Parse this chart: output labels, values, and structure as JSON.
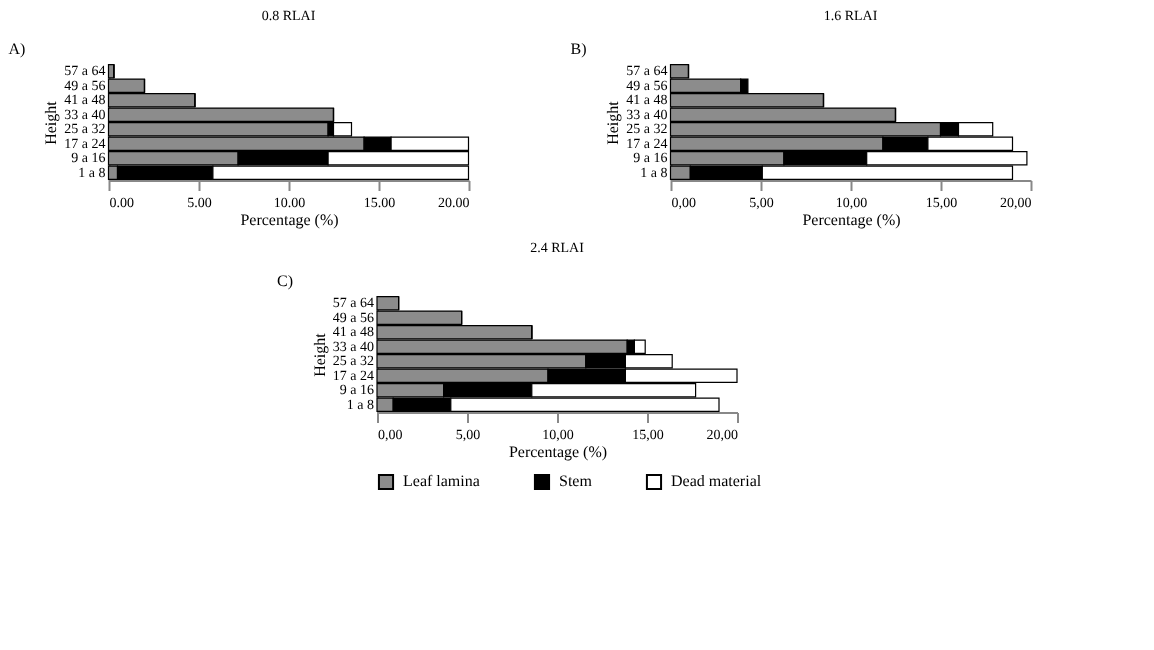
{
  "chart_data": [
    {
      "type": "bar",
      "title": "0.8 RLAI",
      "annotations": [
        "A)"
      ],
      "orientation": "horizontal",
      "stacked": true,
      "ylabel": "Height",
      "xlabel": "Percentage (%)",
      "legend": false,
      "categories": [
        "57 a 64",
        "49 a 56",
        "41 a 48",
        "33 a 40",
        "25 a 32",
        "17 a 24",
        "9 a 16",
        "1 a 8"
      ],
      "xlim": [
        0,
        20
      ],
      "xticks": [
        {
          "value": 0,
          "label": "0.00"
        },
        {
          "value": 5,
          "label": "5.00"
        },
        {
          "value": 10,
          "label": "10.00"
        },
        {
          "value": 15,
          "label": "15.00"
        },
        {
          "value": 20,
          "label": "20.00"
        }
      ],
      "series": [
        {
          "color": "#8c8c8c",
          "values": [
            0.3,
            2.0,
            4.8,
            12.5,
            12.2,
            14.2,
            7.2,
            0.5
          ]
        },
        {
          "color": "#000000",
          "values": [
            0,
            0,
            0,
            0,
            0.3,
            1.5,
            5.0,
            5.3
          ]
        },
        {
          "color": "#ffffff",
          "values": [
            0,
            0,
            0,
            0,
            1.0,
            4.3,
            7.8,
            14.2
          ]
        }
      ]
    },
    {
      "type": "bar",
      "title": "1.6 RLAI",
      "annotations": [
        "B)"
      ],
      "orientation": "horizontal",
      "stacked": true,
      "ylabel": "Height",
      "xlabel": "Percentage (%)",
      "legend": false,
      "categories": [
        "57 a 64",
        "49 a 56",
        "41 a 48",
        "33 a 40",
        "25 a 32",
        "17 a 24",
        "9 a 16",
        "1 a 8"
      ],
      "xlim": [
        0,
        20
      ],
      "xticks": [
        {
          "value": 0,
          "label": "0,00"
        },
        {
          "value": 5,
          "label": "5,00"
        },
        {
          "value": 10,
          "label": "10,00"
        },
        {
          "value": 15,
          "label": "15,00"
        },
        {
          "value": 20,
          "label": "20,00"
        }
      ],
      "series": [
        {
          "color": "#8c8c8c",
          "values": [
            1.0,
            3.9,
            8.5,
            12.5,
            15.0,
            11.8,
            6.3,
            1.1
          ]
        },
        {
          "color": "#000000",
          "values": [
            0,
            0.4,
            0,
            0,
            1.0,
            2.5,
            4.6,
            4.0
          ]
        },
        {
          "color": "#ffffff",
          "values": [
            0,
            null,
            0,
            0,
            1.9,
            4.7,
            8.9,
            13.9
          ]
        }
      ]
    },
    {
      "type": "bar",
      "title": "2.4 RLAI",
      "annotations": [
        "C)"
      ],
      "orientation": "horizontal",
      "stacked": true,
      "ylabel": "Height",
      "xlabel": "Percentage (%)",
      "legend": "bottom",
      "categories": [
        "57 a 64",
        "49 a 56",
        "41 a 48",
        "33 a 40",
        "25 a 32",
        "17 a 24",
        "9 a 16",
        "1 a 8"
      ],
      "xlim": [
        0,
        20
      ],
      "xticks": [
        {
          "value": 0,
          "label": "0,00"
        },
        {
          "value": 5,
          "label": "5,00"
        },
        {
          "value": 10,
          "label": "10,00"
        },
        {
          "value": 15,
          "label": "15,00"
        },
        {
          "value": 20,
          "label": "20,00"
        }
      ],
      "series": [
        {
          "name": "Leaf lamina",
          "color": "#8c8c8c",
          "values": [
            1.2,
            4.7,
            8.6,
            13.9,
            11.6,
            9.5,
            3.7,
            0.9
          ]
        },
        {
          "name": "Stem",
          "color": "#000000",
          "values": [
            0,
            0,
            0,
            0.4,
            2.2,
            4.3,
            4.9,
            3.2
          ]
        },
        {
          "name": "Dead material",
          "color": "#ffffff",
          "values": [
            0,
            0,
            0,
            0.6,
            2.6,
            6.2,
            9.1,
            14.9
          ]
        }
      ]
    }
  ]
}
